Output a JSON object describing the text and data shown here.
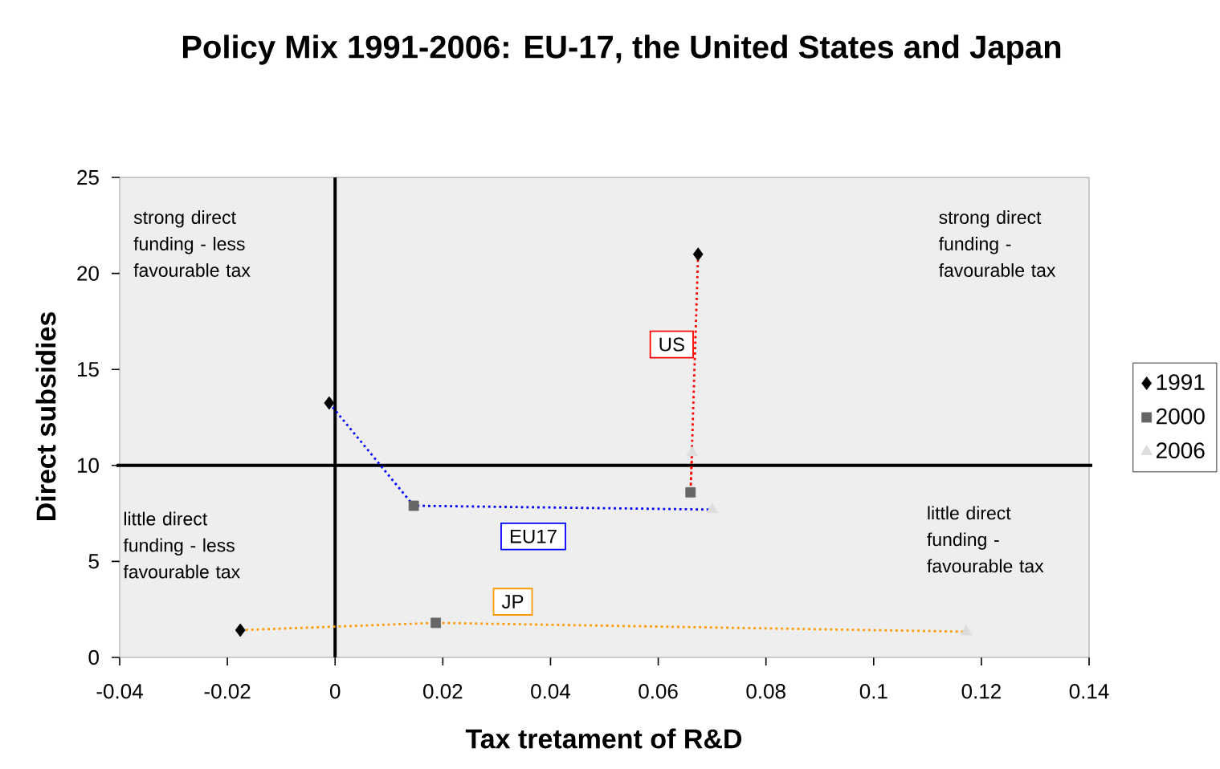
{
  "chart_data": {
    "type": "scatter",
    "title": "Policy Mix 1991-2006: EU-17, the United States and Japan",
    "xlabel": "Tax tretament of R&D",
    "ylabel": "Direct subsidies",
    "xlim": [
      -0.04,
      0.14
    ],
    "xticks": [
      -0.04,
      -0.02,
      0,
      0.02,
      0.04,
      0.06,
      0.08,
      0.1,
      0.12,
      0.14
    ],
    "ylim": [
      0,
      25
    ],
    "yticks": [
      0,
      5,
      10,
      15,
      20,
      25
    ],
    "grid": false,
    "legend": "right",
    "ref_lines": [
      {
        "axis": "x",
        "value": 0,
        "color": "#000000"
      },
      {
        "axis": "y",
        "value": 10,
        "color": "#000000"
      }
    ],
    "series": [
      {
        "type": "line",
        "color": "#0000ff",
        "line_style": "dotted",
        "marker": "none",
        "x": [
          -0.0011,
          0.0146,
          0.07
        ],
        "values": [
          13.25,
          7.9,
          7.7
        ]
      },
      {
        "type": "line",
        "color": "#ff0000",
        "line_style": "dotted",
        "marker": "none",
        "x": [
          0.0674,
          0.066,
          0.0663
        ],
        "values": [
          21.0,
          8.6,
          10.66
        ]
      },
      {
        "type": "line",
        "color": "#ff9900",
        "line_style": "dotted",
        "marker": "none",
        "x": [
          -0.0176,
          0.0187,
          0.1172
        ],
        "values": [
          1.42,
          1.8,
          1.34
        ]
      },
      {
        "name": "1991",
        "color": "#000000",
        "marker": "diamond",
        "x": [
          -0.0011,
          0.0674,
          -0.0176
        ],
        "values": [
          13.25,
          21.0,
          1.42
        ]
      },
      {
        "name": "2000",
        "color": "#666666",
        "marker": "square",
        "x": [
          0.0146,
          0.066,
          0.0187
        ],
        "values": [
          7.9,
          8.6,
          1.8
        ]
      },
      {
        "name": "2006",
        "color": "#dddddd",
        "marker": "triangle",
        "x": [
          0.07,
          0.0663,
          0.1172
        ],
        "values": [
          7.7,
          10.66,
          1.34
        ]
      }
    ],
    "annotations": [
      "strong direct funding - less favourable tax",
      "strong direct funding - favourable tax",
      "little direct funding - less favourable tax",
      "little direct funding - favourable tax",
      "EU17",
      "US",
      "JP"
    ]
  }
}
